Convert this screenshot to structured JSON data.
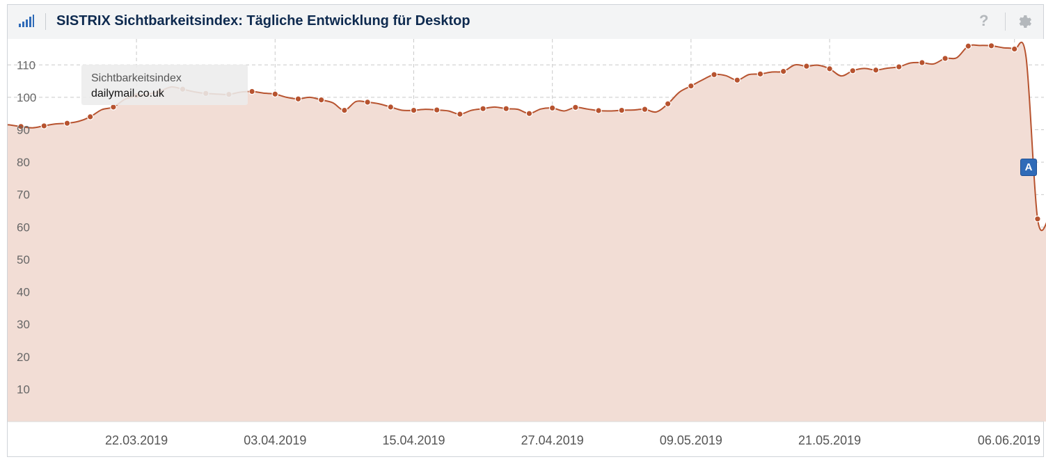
{
  "header": {
    "title": "SISTRIX Sichtbarkeitsindex: Tägliche Entwicklung für Desktop",
    "help_label": "?"
  },
  "tooltip": {
    "series": "Sichtbarkeitsindex",
    "domain": "dailymail.co.uk"
  },
  "annotation": {
    "label": "A",
    "color": "#2f6bb8"
  },
  "colors": {
    "line": "#b7532f",
    "fill": "#f2ddd5",
    "grid": "#c9c9c9",
    "tick": "#666666"
  },
  "chart_data": {
    "type": "area",
    "title": "SISTRIX Sichtbarkeitsindex: Tägliche Entwicklung für Desktop",
    "xlabel": "",
    "ylabel": "",
    "ylim": [
      0,
      118
    ],
    "y_ticks": [
      10,
      20,
      30,
      40,
      50,
      60,
      70,
      80,
      90,
      100,
      110
    ],
    "x_tick_labels": [
      "22.03.2019",
      "03.04.2019",
      "15.04.2019",
      "27.04.2019",
      "09.05.2019",
      "21.05.2019",
      "06.06.2019"
    ],
    "grid": true,
    "legend": "none",
    "series": [
      {
        "name": "dailymail.co.uk",
        "x": [
          "11.03.2019",
          "12.03.2019",
          "13.03.2019",
          "14.03.2019",
          "15.03.2019",
          "16.03.2019",
          "17.03.2019",
          "18.03.2019",
          "19.03.2019",
          "20.03.2019",
          "21.03.2019",
          "22.03.2019",
          "23.03.2019",
          "24.03.2019",
          "25.03.2019",
          "26.03.2019",
          "27.03.2019",
          "28.03.2019",
          "29.03.2019",
          "30.03.2019",
          "31.03.2019",
          "01.04.2019",
          "02.04.2019",
          "03.04.2019",
          "04.04.2019",
          "05.04.2019",
          "06.04.2019",
          "07.04.2019",
          "08.04.2019",
          "09.04.2019",
          "10.04.2019",
          "11.04.2019",
          "12.04.2019",
          "13.04.2019",
          "14.04.2019",
          "15.04.2019",
          "16.04.2019",
          "17.04.2019",
          "18.04.2019",
          "19.04.2019",
          "20.04.2019",
          "21.04.2019",
          "22.04.2019",
          "23.04.2019",
          "24.04.2019",
          "25.04.2019",
          "26.04.2019",
          "27.04.2019",
          "28.04.2019",
          "29.04.2019",
          "30.04.2019",
          "01.05.2019",
          "02.05.2019",
          "03.05.2019",
          "04.05.2019",
          "05.05.2019",
          "06.05.2019",
          "07.05.2019",
          "08.05.2019",
          "09.05.2019",
          "10.05.2019",
          "11.05.2019",
          "12.05.2019",
          "13.05.2019",
          "14.05.2019",
          "15.05.2019",
          "16.05.2019",
          "17.05.2019",
          "18.05.2019",
          "19.05.2019",
          "20.05.2019",
          "21.05.2019",
          "22.05.2019",
          "23.05.2019",
          "24.05.2019",
          "25.05.2019",
          "26.05.2019",
          "27.05.2019",
          "28.05.2019",
          "29.05.2019",
          "30.05.2019",
          "31.05.2019",
          "01.06.2019",
          "02.06.2019",
          "03.06.2019",
          "04.06.2019",
          "05.06.2019",
          "06.06.2019",
          "07.06.2019",
          "08.06.2019",
          "09.06.2019"
        ],
        "values": [
          91.5,
          91,
          90.6,
          91.2,
          91.8,
          92,
          92.6,
          94,
          96.2,
          97,
          99.4,
          100.5,
          101,
          101.8,
          103.2,
          102.5,
          101.7,
          101.2,
          101,
          100.9,
          101.6,
          101.8,
          101.3,
          101,
          100,
          99.5,
          100,
          99.2,
          98.3,
          96,
          98.7,
          98.5,
          98,
          97,
          96,
          96,
          96.3,
          96.1,
          95.8,
          94.8,
          96,
          96.5,
          97,
          96.5,
          96.3,
          95,
          96.4,
          96.7,
          95.8,
          96.9,
          96.4,
          95.9,
          95.8,
          96,
          96.1,
          96.3,
          95.5,
          98,
          101.6,
          103.5,
          105.4,
          107,
          106.7,
          105.3,
          107,
          107.2,
          107.8,
          108,
          110,
          109.6,
          109.9,
          108.8,
          106.6,
          108.2,
          108.9,
          108.4,
          109,
          109.4,
          110.6,
          110.7,
          110.3,
          112,
          112.2,
          115.8,
          116,
          115.9,
          115.3,
          114.9,
          112.5,
          62.5,
          63
        ]
      }
    ]
  }
}
